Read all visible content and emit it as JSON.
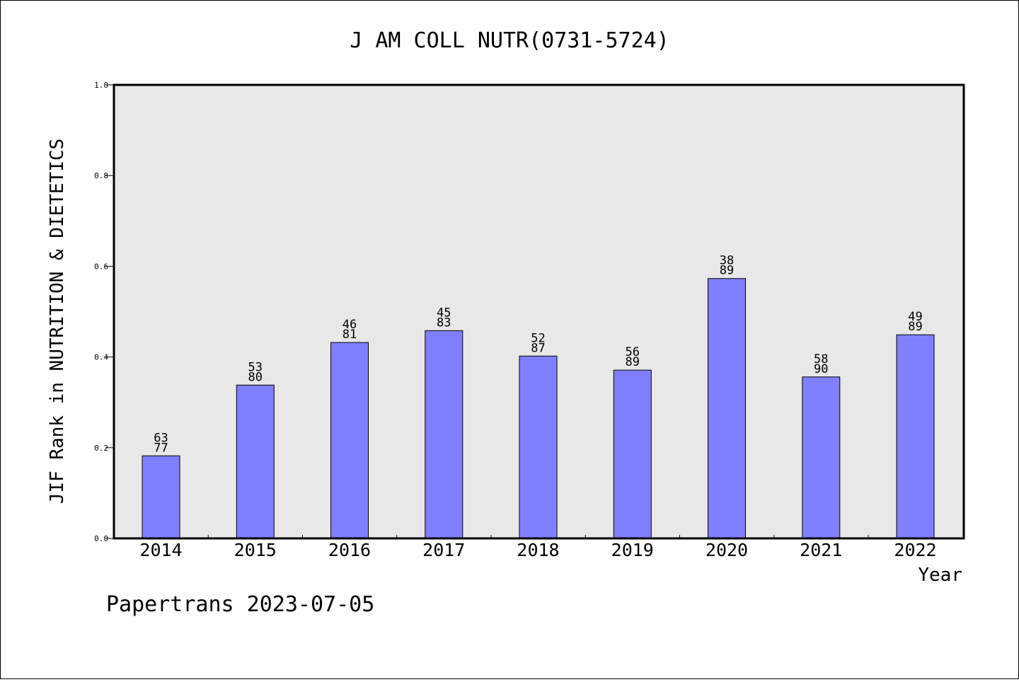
{
  "chart_data": {
    "type": "bar",
    "title": "J AM COLL NUTR(0731-5724)",
    "xlabel": "Year",
    "ylabel": "JIF Rank in NUTRITION & DIETETICS",
    "ylim": [
      0.0,
      1.0
    ],
    "yticks": [
      "0.0",
      "0.2",
      "0.4",
      "0.6",
      "0.8",
      "1.0"
    ],
    "ytick_values": [
      0.0,
      0.2,
      0.4,
      0.6,
      0.8,
      1.0
    ],
    "grid": false,
    "categories": [
      "2014",
      "2015",
      "2016",
      "2017",
      "2018",
      "2019",
      "2020",
      "2021",
      "2022"
    ],
    "values": [
      0.182,
      0.338,
      0.432,
      0.458,
      0.402,
      0.371,
      0.573,
      0.356,
      0.449
    ],
    "rank": [
      "63",
      "53",
      "46",
      "45",
      "52",
      "56",
      "38",
      "58",
      "49"
    ],
    "total": [
      "77",
      "80",
      "81",
      "83",
      "87",
      "89",
      "89",
      "90",
      "89"
    ],
    "bar_color": "#8080ff",
    "plot_background": "#e8e8e8"
  },
  "footer": {
    "text": "Papertrans 2023-07-05"
  }
}
